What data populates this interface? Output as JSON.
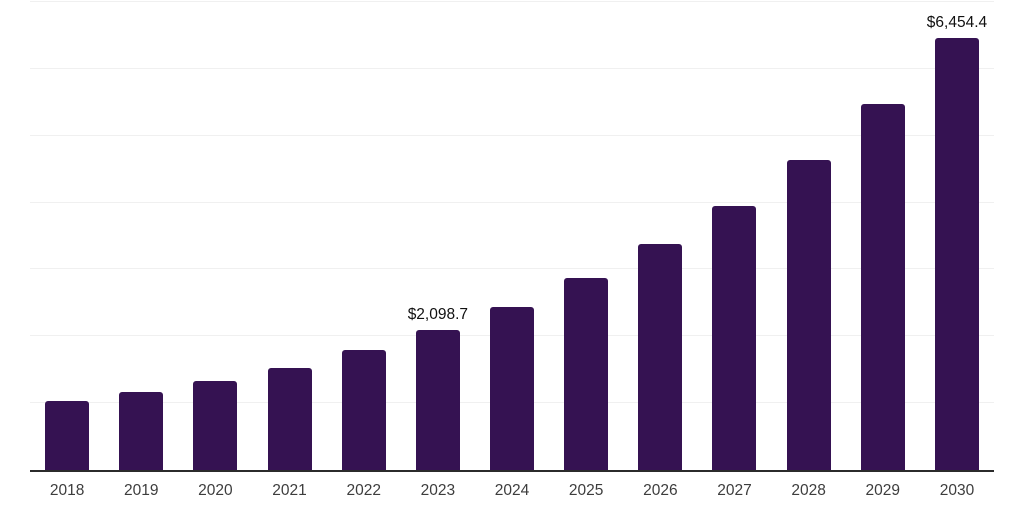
{
  "chart_data": {
    "type": "bar",
    "title": "",
    "xlabel": "",
    "ylabel": "",
    "categories": [
      "2018",
      "2019",
      "2020",
      "2021",
      "2022",
      "2023",
      "2024",
      "2025",
      "2026",
      "2027",
      "2028",
      "2029",
      "2030"
    ],
    "values": [
      1030,
      1170,
      1330,
      1520,
      1800,
      2098.7,
      2440,
      2870,
      3380,
      3950,
      4630,
      5470,
      6454.4
    ],
    "visible_value_labels": [
      {
        "category": "2023",
        "text": "$2,098.7"
      },
      {
        "category": "2030",
        "text": "$6,454.4"
      }
    ],
    "ylim": [
      0,
      7000
    ],
    "gridline_interval": 1000,
    "grid": "horizontal",
    "y_tick_labels_shown": false,
    "legend_position": "none",
    "colors": {
      "bar": "#351252",
      "gridline": "#f0f0f0",
      "axis_line": "#2b2b2b",
      "x_tick_label": "#3d3d3d",
      "value_label": "#111111",
      "background": "#ffffff"
    }
  }
}
